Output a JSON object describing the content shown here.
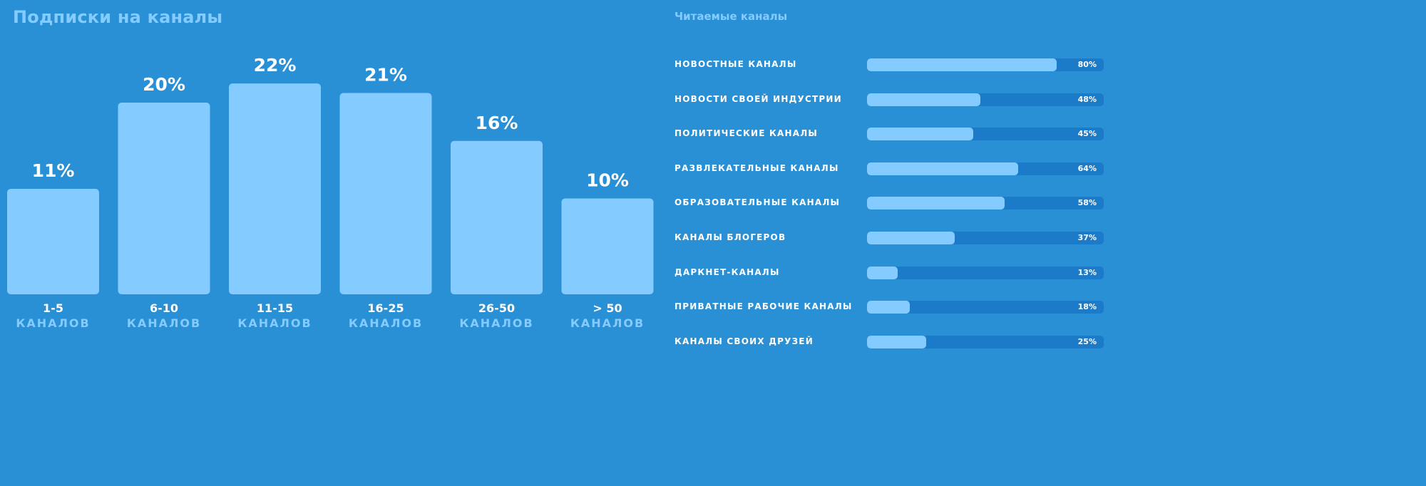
{
  "chart_data": [
    {
      "type": "bar",
      "title": "Подписки на каналы",
      "categories": [
        "1-5",
        "6-10",
        "11-15",
        "16-25",
        "26-50",
        "> 50"
      ],
      "category_sublabel": "КАНАЛОВ",
      "values": [
        11,
        20,
        22,
        21,
        16,
        10
      ],
      "value_labels": [
        "11%",
        "20%",
        "22%",
        "21%",
        "16%",
        "10%"
      ],
      "unit": "%"
    },
    {
      "type": "bar",
      "orientation": "horizontal",
      "title": "Читаемые каналы",
      "categories": [
        "НОВОСТНЫЕ КАНАЛЫ",
        "НОВОСТИ СВОЕЙ ИНДУСТРИИ",
        "ПОЛИТИЧЕСКИЕ КАНАЛЫ",
        "РАЗВЛЕКАТЕЛЬНЫЕ КАНАЛЫ",
        "ОБРАЗОВАТЕЛЬНЫЕ КАНАЛЫ",
        "КАНАЛЫ БЛОГЕРОВ",
        "ДАРКНЕТ-КАНАЛЫ",
        "ПРИВАТНЫЕ РАБОЧИЕ КАНАЛЫ",
        "КАНАЛЫ СВОИХ ДРУЗЕЙ"
      ],
      "values": [
        80,
        48,
        45,
        64,
        58,
        37,
        13,
        18,
        25
      ],
      "value_labels": [
        "80%",
        "48%",
        "45%",
        "64%",
        "58%",
        "37%",
        "13%",
        "18%",
        "25%"
      ],
      "xlim": [
        0,
        100
      ],
      "unit": "%"
    }
  ],
  "colors": {
    "background": "#2a90d6",
    "bar": "#84cbff",
    "track": "#1c7bc9",
    "text": "#ffffff"
  }
}
